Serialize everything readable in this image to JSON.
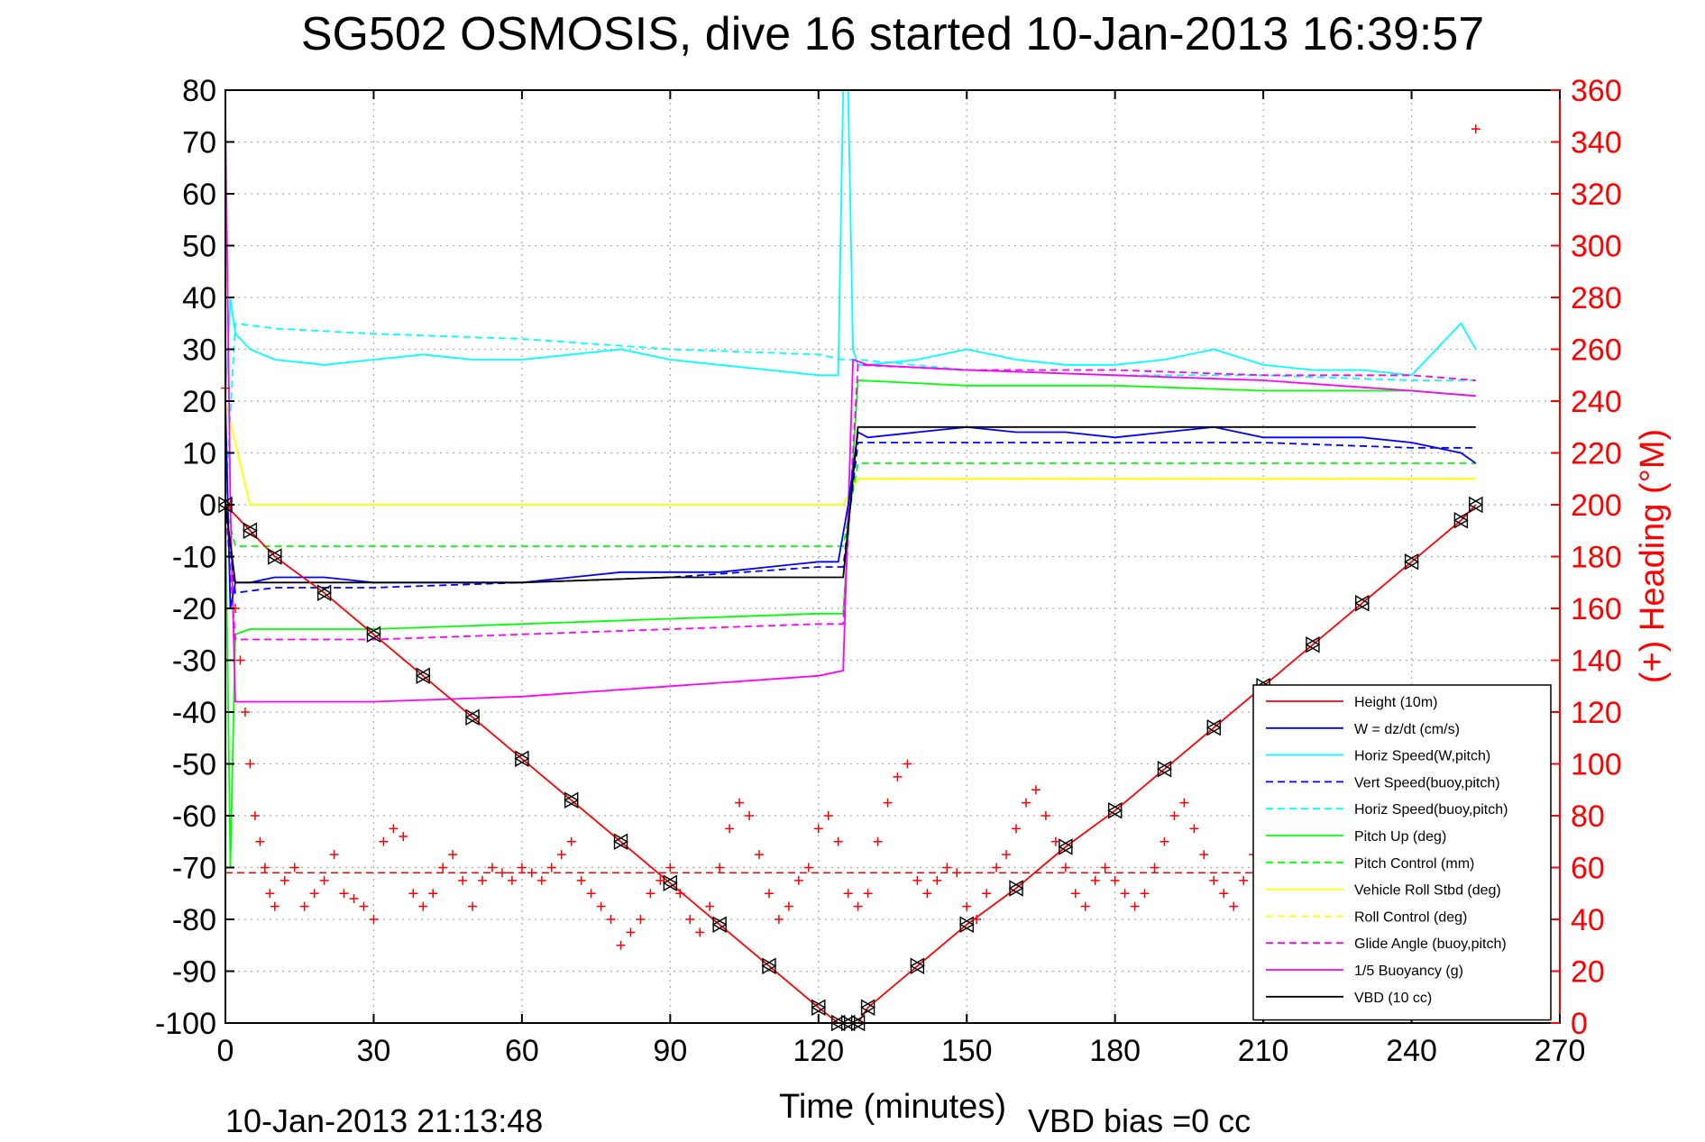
{
  "chart_data": {
    "type": "line",
    "title": "SG502 OSMOSIS, dive 16 started 10-Jan-2013 16:39:57",
    "xlabel": "Time (minutes)",
    "ylabel_right": "(+) Heading (°M)",
    "footer_left": "10-Jan-2013 21:13:48",
    "footer_right": "VBD bias =0 cc",
    "xlim": [
      0,
      270
    ],
    "ylim": [
      -100,
      80
    ],
    "ylim_right": [
      0,
      360
    ],
    "x_ticks": [
      0,
      30,
      60,
      90,
      120,
      150,
      180,
      210,
      240,
      270
    ],
    "y_ticks": [
      80,
      70,
      60,
      50,
      40,
      30,
      20,
      10,
      0,
      -10,
      -20,
      -30,
      -40,
      -50,
      -60,
      -70,
      -80,
      -90,
      -100
    ],
    "y_right_ticks": [
      360,
      340,
      320,
      300,
      280,
      260,
      240,
      220,
      200,
      180,
      160,
      140,
      120,
      100,
      80,
      60,
      40,
      20,
      0
    ],
    "grid": true,
    "legend_position": "bottom-right",
    "colors": {
      "red": "#ff0000",
      "blue": "#0000ff",
      "cyan": "#00ffff",
      "green": "#00ff00",
      "yellow": "#ffff00",
      "magenta": "#ff00ff",
      "black": "#000000"
    },
    "series": [
      {
        "name": "Height (10m)",
        "color": "#ff0000",
        "style": "solid",
        "marker": "triangle",
        "x": [
          0,
          5,
          10,
          20,
          30,
          40,
          50,
          60,
          70,
          80,
          90,
          100,
          110,
          120,
          124,
          126,
          128,
          130,
          140,
          150,
          160,
          170,
          180,
          190,
          200,
          210,
          220,
          230,
          240,
          250,
          253
        ],
        "y": [
          0,
          -5,
          -10,
          -17,
          -25,
          -33,
          -41,
          -49,
          -57,
          -65,
          -73,
          -81,
          -89,
          -97,
          -100,
          -100,
          -100,
          -97,
          -89,
          -81,
          -74,
          -66,
          -59,
          -51,
          -43,
          -35,
          -27,
          -19,
          -11,
          -3,
          0
        ]
      },
      {
        "name": "W = dz/dt (cm/s)",
        "color": "#0000ff",
        "style": "solid",
        "marker": "none",
        "x": [
          0,
          1,
          2,
          5,
          10,
          20,
          30,
          40,
          50,
          60,
          70,
          80,
          90,
          100,
          110,
          120,
          124,
          126,
          128,
          130,
          140,
          150,
          160,
          170,
          180,
          190,
          200,
          210,
          220,
          230,
          240,
          250,
          253
        ],
        "y": [
          20,
          -20,
          -15,
          -15,
          -14,
          -14,
          -15,
          -15,
          -15,
          -15,
          -14,
          -13,
          -13,
          -13,
          -12,
          -11,
          -11,
          0,
          14,
          13,
          14,
          15,
          14,
          14,
          13,
          14,
          15,
          13,
          13,
          13,
          12,
          10,
          8
        ]
      },
      {
        "name": "Horiz Speed(W,pitch)",
        "color": "#00ffff",
        "style": "solid",
        "marker": "none",
        "x": [
          0,
          1,
          2,
          5,
          10,
          20,
          30,
          40,
          50,
          60,
          70,
          80,
          90,
          100,
          110,
          120,
          124,
          125,
          126,
          127,
          128,
          130,
          140,
          150,
          160,
          170,
          180,
          190,
          200,
          210,
          220,
          230,
          240,
          250,
          253
        ],
        "y": [
          20,
          40,
          33,
          30,
          28,
          27,
          28,
          29,
          28,
          28,
          29,
          30,
          28,
          27,
          26,
          25,
          25,
          80,
          80,
          30,
          27,
          27,
          28,
          30,
          28,
          27,
          27,
          28,
          30,
          27,
          26,
          26,
          25,
          35,
          30
        ]
      },
      {
        "name": "Vert Speed(buoy,pitch)",
        "color": "#0000ff",
        "style": "dashed",
        "marker": "none",
        "x": [
          0,
          2,
          10,
          30,
          60,
          90,
          120,
          125,
          128,
          150,
          180,
          210,
          240,
          253
        ],
        "y": [
          0,
          -17,
          -16,
          -16,
          -15,
          -14,
          -12,
          -12,
          12,
          12,
          12,
          12,
          11,
          11
        ]
      },
      {
        "name": "Horiz Speed(buoy,pitch)",
        "color": "#00ffff",
        "style": "dashed",
        "marker": "none",
        "x": [
          0,
          2,
          10,
          30,
          60,
          90,
          120,
          125,
          128,
          150,
          180,
          210,
          240,
          253
        ],
        "y": [
          0,
          35,
          34,
          33,
          32,
          30,
          29,
          28,
          28,
          26,
          25,
          25,
          24,
          24
        ]
      },
      {
        "name": "Pitch Up (deg)",
        "color": "#00ff00",
        "style": "solid",
        "marker": "none",
        "x": [
          0,
          1,
          2,
          5,
          10,
          30,
          60,
          90,
          120,
          125,
          128,
          150,
          180,
          210,
          240,
          253
        ],
        "y": [
          0,
          -70,
          -25,
          -24,
          -24,
          -24,
          -23,
          -22,
          -21,
          -21,
          24,
          23,
          23,
          22,
          22,
          21
        ]
      },
      {
        "name": "Pitch Control (mm)",
        "color": "#00ff00",
        "style": "dashed",
        "marker": "none",
        "x": [
          0,
          2,
          10,
          30,
          60,
          90,
          120,
          125,
          128,
          150,
          180,
          210,
          240,
          253
        ],
        "y": [
          0,
          -8,
          -8,
          -8,
          -8,
          -8,
          -8,
          -8,
          8,
          8,
          8,
          8,
          8,
          8
        ]
      },
      {
        "name": "Vehicle Roll Stbd (deg)",
        "color": "#ffff00",
        "style": "solid",
        "marker": "none",
        "x": [
          0,
          5,
          10,
          20,
          30,
          60,
          90,
          120,
          125,
          128,
          150,
          180,
          210,
          240,
          253
        ],
        "y": [
          20,
          0,
          0,
          0,
          0,
          0,
          0,
          0,
          0,
          5,
          5,
          5,
          5,
          5,
          5
        ]
      },
      {
        "name": "Roll Control (deg)",
        "color": "#ffff00",
        "style": "dashed",
        "marker": "none",
        "x": [
          0,
          5,
          10,
          30,
          60,
          90,
          120,
          125,
          128,
          150,
          180,
          210,
          240,
          253
        ],
        "y": [
          20,
          0,
          0,
          0,
          0,
          0,
          0,
          0,
          5,
          5,
          5,
          5,
          5,
          5
        ]
      },
      {
        "name": "Glide Angle (buoy,pitch)",
        "color": "#ff00ff",
        "style": "dashed",
        "marker": "none",
        "x": [
          0,
          2,
          10,
          30,
          60,
          90,
          120,
          125,
          128,
          150,
          180,
          210,
          240,
          253
        ],
        "y": [
          0,
          -26,
          -26,
          -26,
          -25,
          -24,
          -23,
          -23,
          27,
          26,
          26,
          25,
          25,
          24
        ]
      },
      {
        "name": "1/5 Buoyancy (g)",
        "color": "#ff00ff",
        "style": "solid",
        "marker": "none",
        "x": [
          0,
          1,
          2,
          10,
          20,
          30,
          60,
          90,
          120,
          125,
          127,
          130,
          150,
          180,
          210,
          240,
          253
        ],
        "y": [
          75,
          0,
          -38,
          -38,
          -38,
          -38,
          -37,
          -35,
          -33,
          -32,
          28,
          27,
          26,
          25,
          24,
          22,
          21
        ]
      },
      {
        "name": "VBD (10 cc)",
        "color": "#000000",
        "style": "solid",
        "marker": "none",
        "x": [
          0,
          2,
          10,
          30,
          60,
          90,
          120,
          125,
          128,
          150,
          180,
          210,
          240,
          253
        ],
        "y": [
          0,
          -15,
          -15,
          -15,
          -15,
          -14,
          -14,
          -14,
          15,
          15,
          15,
          15,
          15,
          15
        ]
      }
    ],
    "heading": {
      "color": "#ff0000",
      "marker": "plus",
      "target_line": 58,
      "x": [
        0,
        1,
        2,
        3,
        4,
        5,
        6,
        7,
        8,
        9,
        10,
        12,
        14,
        16,
        18,
        20,
        22,
        24,
        26,
        28,
        30,
        32,
        34,
        36,
        38,
        40,
        42,
        44,
        46,
        48,
        50,
        52,
        54,
        56,
        58,
        60,
        62,
        64,
        66,
        68,
        70,
        72,
        74,
        76,
        78,
        80,
        82,
        84,
        86,
        88,
        90,
        92,
        94,
        96,
        98,
        100,
        102,
        104,
        106,
        108,
        110,
        112,
        114,
        116,
        118,
        120,
        122,
        124,
        126,
        128,
        130,
        132,
        134,
        136,
        138,
        140,
        142,
        144,
        146,
        148,
        150,
        152,
        154,
        156,
        158,
        160,
        162,
        164,
        166,
        168,
        170,
        172,
        174,
        176,
        178,
        180,
        182,
        184,
        186,
        188,
        190,
        192,
        194,
        196,
        198,
        200,
        202,
        204,
        206,
        208,
        210,
        212,
        214,
        216,
        218,
        220,
        222,
        224,
        226,
        228,
        230,
        232,
        234,
        236,
        238,
        240,
        242,
        244,
        246,
        248,
        250,
        252,
        253
      ],
      "y": [
        245,
        200,
        160,
        140,
        120,
        100,
        80,
        70,
        60,
        50,
        45,
        55,
        60,
        45,
        50,
        55,
        65,
        50,
        48,
        45,
        40,
        70,
        75,
        72,
        50,
        45,
        50,
        60,
        65,
        55,
        45,
        55,
        60,
        58,
        55,
        60,
        58,
        55,
        60,
        65,
        70,
        55,
        50,
        45,
        40,
        30,
        35,
        40,
        50,
        55,
        60,
        50,
        40,
        35,
        45,
        60,
        75,
        85,
        80,
        65,
        50,
        40,
        45,
        55,
        60,
        75,
        80,
        70,
        50,
        45,
        50,
        70,
        85,
        95,
        100,
        55,
        50,
        55,
        60,
        58,
        45,
        40,
        50,
        60,
        65,
        75,
        85,
        90,
        80,
        70,
        60,
        50,
        45,
        55,
        60,
        55,
        50,
        45,
        50,
        60,
        70,
        80,
        85,
        75,
        65,
        55,
        50,
        45,
        55,
        65,
        75,
        80,
        70,
        55,
        50,
        45,
        55,
        60,
        65,
        70,
        75,
        80,
        70,
        60,
        55,
        60,
        70,
        80,
        85,
        75,
        65,
        55,
        345
      ]
    }
  }
}
